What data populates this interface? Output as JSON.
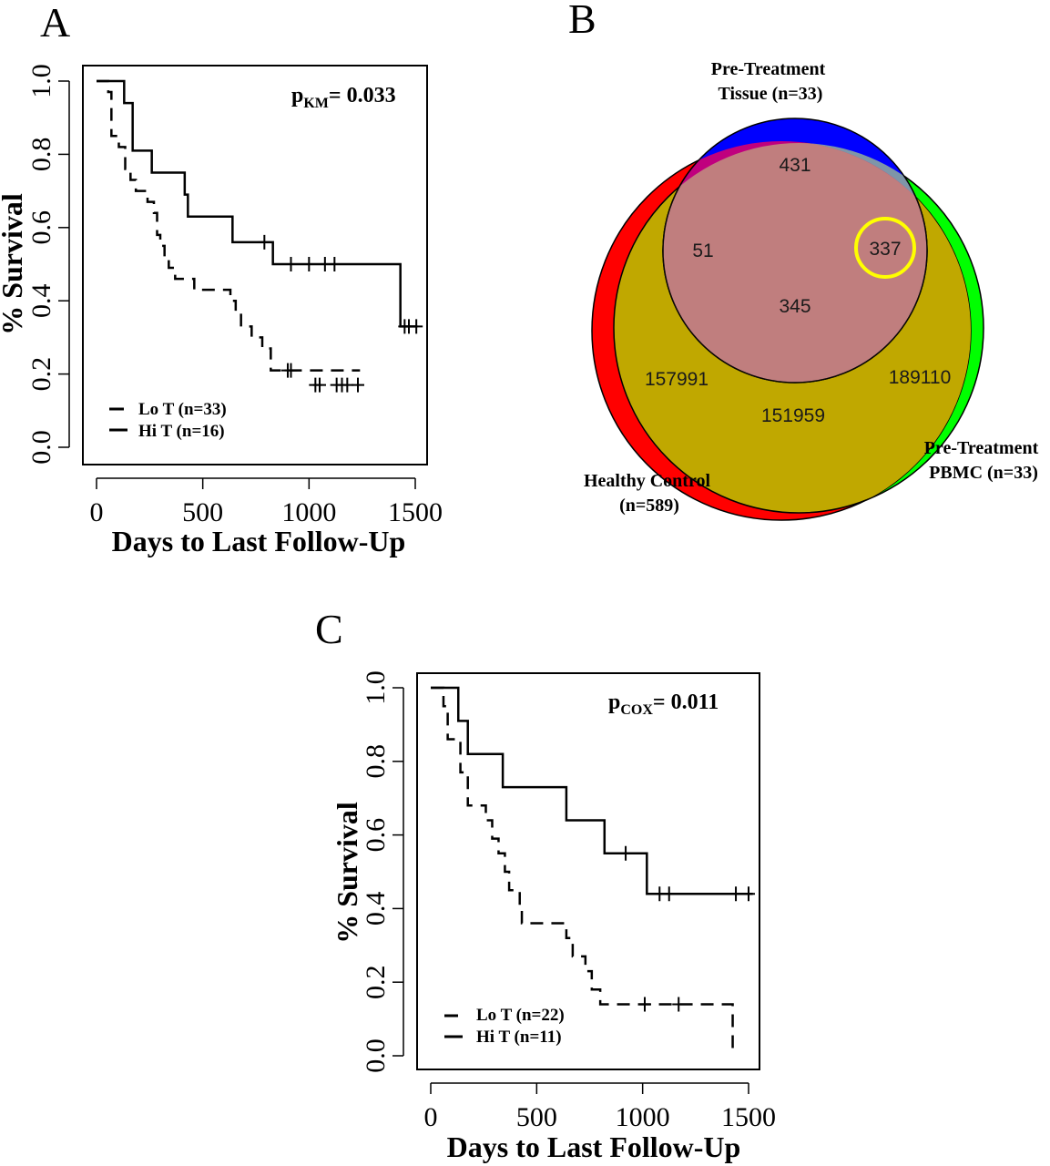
{
  "panels": {
    "A": {
      "letter": "A"
    },
    "B": {
      "letter": "B"
    },
    "C": {
      "letter": "C"
    }
  },
  "chart_data": [
    {
      "type": "line",
      "panel": "A",
      "title": "",
      "xlabel": "Days to Last Follow-Up",
      "ylabel": "% Survival",
      "xlim": [
        0,
        1500
      ],
      "ylim": [
        0,
        1.0
      ],
      "xticks": [
        "0",
        "500",
        "1000",
        "1500"
      ],
      "yticks": [
        "0.0",
        "0.2",
        "0.4",
        "0.6",
        "0.8",
        "1.0"
      ],
      "annotation": {
        "prefix": "p",
        "sub": "KM",
        "suffix": "= 0.033"
      },
      "legend_position": "bottom-left",
      "series": [
        {
          "name": "Lo T (n=33)",
          "style": "dashed",
          "steps": [
            [
              0,
              1.0
            ],
            [
              55,
              0.97
            ],
            [
              70,
              0.85
            ],
            [
              105,
              0.82
            ],
            [
              135,
              0.76
            ],
            [
              160,
              0.73
            ],
            [
              185,
              0.7
            ],
            [
              240,
              0.67
            ],
            [
              270,
              0.64
            ],
            [
              285,
              0.58
            ],
            [
              300,
              0.55
            ],
            [
              320,
              0.52
            ],
            [
              340,
              0.49
            ],
            [
              370,
              0.46
            ],
            [
              460,
              0.43
            ],
            [
              630,
              0.4
            ],
            [
              655,
              0.37
            ],
            [
              680,
              0.33
            ],
            [
              730,
              0.3
            ],
            [
              780,
              0.27
            ],
            [
              820,
              0.21
            ],
            [
              1240,
              0.21
            ]
          ],
          "censored": [
            [
              900,
              0.21
            ],
            [
              915,
              0.21
            ],
            [
              1030,
              0.17
            ],
            [
              1050,
              0.17
            ],
            [
              1130,
              0.17
            ],
            [
              1155,
              0.17
            ],
            [
              1180,
              0.17
            ],
            [
              1230,
              0.17
            ]
          ]
        },
        {
          "name": "Hi T (n=16)",
          "style": "solid",
          "steps": [
            [
              0,
              1.0
            ],
            [
              130,
              0.94
            ],
            [
              170,
              0.81
            ],
            [
              260,
              0.75
            ],
            [
              415,
              0.69
            ],
            [
              430,
              0.63
            ],
            [
              640,
              0.56
            ],
            [
              830,
              0.5
            ],
            [
              1430,
              0.33
            ],
            [
              1510,
              0.33
            ]
          ],
          "censored": [
            [
              790,
              0.56
            ],
            [
              915,
              0.5
            ],
            [
              1000,
              0.5
            ],
            [
              1075,
              0.5
            ],
            [
              1120,
              0.5
            ],
            [
              1450,
              0.33
            ],
            [
              1470,
              0.33
            ],
            [
              1505,
              0.33
            ]
          ]
        }
      ]
    },
    {
      "type": "line",
      "panel": "C",
      "title": "",
      "xlabel": "Days to Last Follow-Up",
      "ylabel": "% Survival",
      "xlim": [
        0,
        1500
      ],
      "ylim": [
        0,
        1.0
      ],
      "xticks": [
        "0",
        "500",
        "1000",
        "1500"
      ],
      "yticks": [
        "0.0",
        "0.2",
        "0.4",
        "0.6",
        "0.8",
        "1.0"
      ],
      "annotation": {
        "prefix": "p",
        "sub": "COX",
        "suffix": "= 0.011"
      },
      "legend_position": "bottom-left",
      "series": [
        {
          "name": "Lo T (n=22)",
          "style": "dashed",
          "steps": [
            [
              0,
              1.0
            ],
            [
              60,
              0.95
            ],
            [
              80,
              0.86
            ],
            [
              140,
              0.77
            ],
            [
              175,
              0.68
            ],
            [
              260,
              0.64
            ],
            [
              290,
              0.59
            ],
            [
              320,
              0.55
            ],
            [
              350,
              0.5
            ],
            [
              370,
              0.45
            ],
            [
              420,
              0.41
            ],
            [
              430,
              0.36
            ],
            [
              640,
              0.32
            ],
            [
              670,
              0.27
            ],
            [
              730,
              0.23
            ],
            [
              760,
              0.18
            ],
            [
              800,
              0.14
            ],
            [
              1420,
              0.14
            ],
            [
              1425,
              0.0
            ]
          ],
          "censored": [
            [
              1010,
              0.14
            ],
            [
              1170,
              0.14
            ]
          ]
        },
        {
          "name": "Hi T (n=11)",
          "style": "solid",
          "steps": [
            [
              0,
              1.0
            ],
            [
              130,
              0.91
            ],
            [
              175,
              0.82
            ],
            [
              340,
              0.73
            ],
            [
              640,
              0.64
            ],
            [
              820,
              0.55
            ],
            [
              1020,
              0.44
            ],
            [
              1520,
              0.44
            ]
          ],
          "censored": [
            [
              920,
              0.55
            ],
            [
              1080,
              0.44
            ],
            [
              1125,
              0.44
            ],
            [
              1440,
              0.44
            ],
            [
              1500,
              0.44
            ]
          ]
        }
      ]
    },
    {
      "type": "venn",
      "panel": "B",
      "sets": [
        {
          "label_line1": "Pre-Treatment",
          "label_line2": "Tissue (n=33)",
          "color": "#0000ff"
        },
        {
          "label_line1": "Healthy Control",
          "label_line2": "(n=589)",
          "color": "#00ff00"
        },
        {
          "label_line1": "Pre-Treatment",
          "label_line2": "PBMC (n=33)",
          "color": "#ff0000"
        }
      ],
      "regions": {
        "tissue_only": "431",
        "tissue_healthy": "51",
        "tissue_pbmc": "337",
        "all_three": "345",
        "healthy_only": "157991",
        "healthy_pbmc": "151959",
        "pbmc_only": "189110"
      },
      "region_colors": {
        "tissue_healthy": "#7e96a8",
        "tissue_pbmc": "#c0007e",
        "all_three": "#c07e7e",
        "healthy_pbmc": "#c0a800"
      },
      "highlight_region": "tissue_pbmc",
      "highlight_color": "#ffff00"
    }
  ]
}
